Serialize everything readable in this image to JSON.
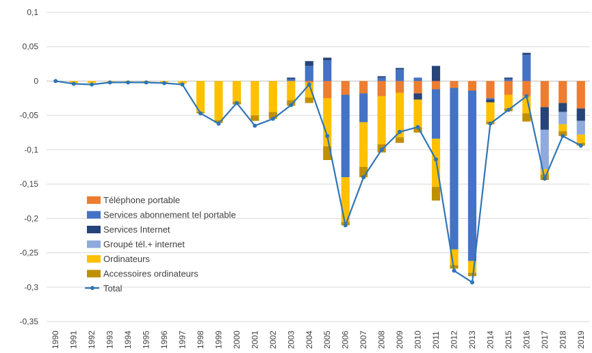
{
  "chart_data": {
    "type": "bar",
    "subtype": "stacked-bar-with-line",
    "title": "",
    "xlabel": "",
    "ylabel": "",
    "ylim": [
      -0.35,
      0.1
    ],
    "y_ticks": [
      0.1,
      0.05,
      0,
      -0.05,
      -0.1,
      -0.15,
      -0.2,
      -0.25,
      -0.3,
      -0.35
    ],
    "y_tick_labels": [
      "0,1",
      "0,05",
      "0",
      "-0,05",
      "-0,1",
      "-0,15",
      "-0,2",
      "-0,25",
      "-0,3",
      "-0,35"
    ],
    "grid": "horizontal",
    "legend_position": "inside-left",
    "categories": [
      "1990",
      "1991",
      "1992",
      "1993",
      "1994",
      "1995",
      "1996",
      "1997",
      "1998",
      "1999",
      "2000",
      "2001",
      "2002",
      "2003",
      "2004",
      "2005",
      "2006",
      "2007",
      "2008",
      "2009",
      "2010",
      "2011",
      "2012",
      "2013",
      "2014",
      "2015",
      "2016",
      "2017",
      "2018",
      "2019"
    ],
    "series": [
      {
        "name": "Téléphone portable",
        "color": "#ED7D31",
        "values": [
          0,
          0,
          0,
          0,
          0,
          0,
          0,
          0,
          0,
          0,
          0,
          0,
          0,
          0,
          -0.002,
          -0.025,
          -0.02,
          -0.018,
          -0.022,
          -0.017,
          -0.018,
          -0.012,
          -0.01,
          -0.014,
          -0.025,
          -0.02,
          -0.022,
          -0.038,
          -0.032,
          -0.04
        ]
      },
      {
        "name": "Services abonnement tel portable",
        "color": "#4472C4",
        "values": [
          0,
          0,
          0,
          0,
          0,
          0,
          0,
          0,
          0,
          0,
          0,
          0,
          0,
          0.003,
          0.022,
          0.03,
          -0.12,
          -0.042,
          0.005,
          0.017,
          0.005,
          -0.072,
          -0.235,
          -0.248,
          -0.002,
          0.003,
          0.038,
          0,
          0,
          0
        ]
      },
      {
        "name": "Services Internet",
        "color": "#264478",
        "values": [
          0,
          0,
          0,
          0,
          0,
          0,
          0,
          0,
          0,
          0,
          0,
          0,
          0,
          0.002,
          0.007,
          0.004,
          0,
          0,
          0.002,
          0.002,
          -0.009,
          0.022,
          0,
          0,
          -0.004,
          0.002,
          0.003,
          -0.033,
          -0.013,
          -0.018
        ]
      },
      {
        "name": "Groupé tél.+ internet",
        "color": "#8FAADC",
        "values": [
          0,
          0,
          0,
          0,
          0,
          0,
          0,
          0,
          0,
          0,
          0,
          0,
          0,
          0,
          0,
          0,
          0,
          0,
          0,
          0,
          0,
          0,
          0,
          0,
          0,
          0,
          0,
          -0.057,
          -0.018,
          -0.02
        ]
      },
      {
        "name": "Ordinateurs",
        "color": "#FFC000",
        "values": [
          0,
          -0.003,
          -0.003,
          -0.001,
          -0.001,
          -0.001,
          -0.002,
          -0.004,
          -0.045,
          -0.057,
          -0.03,
          -0.05,
          -0.045,
          -0.028,
          -0.022,
          -0.07,
          -0.065,
          -0.065,
          -0.07,
          -0.065,
          -0.04,
          -0.07,
          -0.023,
          -0.017,
          -0.028,
          -0.02,
          -0.025,
          -0.008,
          -0.01,
          -0.012
        ]
      },
      {
        "name": "Accessoires ordinateurs",
        "color": "#BF9000",
        "values": [
          0,
          0,
          0,
          0,
          0,
          0,
          0,
          0,
          -0.002,
          -0.004,
          -0.004,
          -0.008,
          -0.01,
          -0.008,
          -0.008,
          -0.02,
          -0.005,
          -0.015,
          -0.012,
          -0.008,
          -0.008,
          -0.02,
          -0.005,
          -0.005,
          -0.004,
          -0.004,
          -0.012,
          -0.008,
          -0.007,
          -0.004
        ]
      },
      {
        "name": "Total",
        "type": "line",
        "color": "#2E75B6",
        "values": [
          0,
          -0.004,
          -0.005,
          -0.002,
          -0.002,
          -0.002,
          -0.003,
          -0.005,
          -0.047,
          -0.062,
          -0.032,
          -0.065,
          -0.055,
          -0.035,
          -0.005,
          -0.08,
          -0.21,
          -0.14,
          -0.1,
          -0.074,
          -0.067,
          -0.114,
          -0.276,
          -0.293,
          -0.062,
          -0.042,
          -0.022,
          -0.142,
          -0.08,
          -0.094
        ]
      }
    ]
  }
}
